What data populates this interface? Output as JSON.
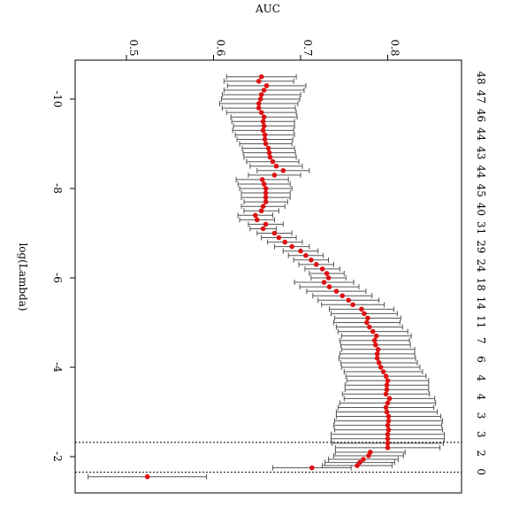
{
  "chart_data": {
    "type": "scatter",
    "title": "",
    "xlabel": "log(Lambda)",
    "ylabel": "AUC",
    "orientation": "rotated 90 degrees clockwise: log(Lambda) runs top to bottom, AUC runs left to right",
    "xlim": [
      -10.8,
      -1.4
    ],
    "ylim": [
      0.44,
      0.87
    ],
    "x_ticks": [
      -10,
      -8,
      -6,
      -4,
      -2
    ],
    "x_tick_labels": [
      "-10",
      "-8",
      "-6",
      "-4",
      "-2"
    ],
    "y_ticks": [
      0.5,
      0.6,
      0.7,
      0.8
    ],
    "y_tick_labels": [
      "0.5",
      "0.6",
      "0.7",
      "0.8"
    ],
    "top_axis_label_values": [
      "48",
      "47",
      "46",
      "44",
      "43",
      "44",
      "45",
      "40",
      "31",
      "29",
      "24",
      "18",
      "14",
      "11",
      "7",
      "6",
      "4",
      "4",
      "3",
      "3",
      "2",
      "0"
    ],
    "top_axis_label_positions": [
      -10.5,
      -10.0,
      -9.5,
      -9.0,
      -8.5,
      -8.0,
      -7.5,
      -7.0,
      -6.5,
      -6.0,
      -5.5,
      -5.0,
      -4.5,
      -4.0,
      -3.5,
      -3.0,
      -2.5,
      -2.0,
      -1.7,
      -1.5,
      -1.4,
      -1.5
    ],
    "grid": false,
    "reference_lines_x": [
      -2.32,
      -1.65
    ],
    "point_color": "#dd1111",
    "errorbar_color": "#555555",
    "series": [
      {
        "log_lambda": [
          -1.55,
          -1.75,
          -1.8,
          -1.87,
          -1.94,
          -2.02,
          -2.1,
          -2.2,
          -2.3,
          -2.4,
          -2.5,
          -2.6,
          -2.7,
          -2.8,
          -2.9,
          -3.0,
          -3.1,
          -3.2,
          -3.3,
          -3.4,
          -3.5,
          -3.6,
          -3.7,
          -3.8,
          -3.9,
          -4.0,
          -4.1,
          -4.2,
          -4.3,
          -4.4,
          -4.5,
          -4.6,
          -4.7,
          -4.8,
          -4.9,
          -5.0,
          -5.1,
          -5.2,
          -5.3,
          -5.4,
          -5.5,
          -5.6,
          -5.7,
          -5.8,
          -5.9,
          -6.0,
          -6.1,
          -6.2,
          -6.3,
          -6.4,
          -6.5,
          -6.6,
          -6.7,
          -6.8,
          -6.9,
          -7.0,
          -7.1,
          -7.2,
          -7.3,
          -7.4,
          -7.5,
          -7.6,
          -7.7,
          -7.8,
          -7.9,
          -8.0,
          -8.1,
          -8.2,
          -8.3,
          -8.4,
          -8.5,
          -8.6,
          -8.7,
          -8.8,
          -8.9,
          -9.0,
          -9.1,
          -9.2,
          -9.3,
          -9.4,
          -9.5,
          -9.6,
          -9.7,
          -9.8,
          -9.9,
          -10.0,
          -10.1,
          -10.2,
          -10.3,
          -10.4,
          -10.5
        ],
        "auc": [
          0.524,
          0.713,
          0.765,
          0.768,
          0.772,
          0.778,
          0.78,
          0.8,
          0.8,
          0.8,
          0.8,
          0.801,
          0.8,
          0.801,
          0.801,
          0.799,
          0.798,
          0.8,
          0.802,
          0.798,
          0.799,
          0.799,
          0.8,
          0.798,
          0.795,
          0.792,
          0.79,
          0.788,
          0.788,
          0.789,
          0.786,
          0.785,
          0.787,
          0.783,
          0.779,
          0.776,
          0.777,
          0.773,
          0.77,
          0.76,
          0.755,
          0.748,
          0.741,
          0.733,
          0.727,
          0.732,
          0.73,
          0.725,
          0.718,
          0.712,
          0.706,
          0.7,
          0.69,
          0.682,
          0.675,
          0.67,
          0.657,
          0.66,
          0.65,
          0.648,
          0.655,
          0.657,
          0.66,
          0.66,
          0.66,
          0.66,
          0.658,
          0.656,
          0.67,
          0.68,
          0.672,
          0.668,
          0.665,
          0.664,
          0.663,
          0.66,
          0.659,
          0.659,
          0.657,
          0.658,
          0.657,
          0.658,
          0.655,
          0.652,
          0.652,
          0.654,
          0.655,
          0.658,
          0.661,
          0.652,
          0.655
        ],
        "half_width": [
          0.068,
          0.045,
          0.04,
          0.04,
          0.04,
          0.04,
          0.04,
          0.06,
          0.064,
          0.065,
          0.065,
          0.062,
          0.062,
          0.062,
          0.06,
          0.058,
          0.055,
          0.055,
          0.052,
          0.05,
          0.048,
          0.048,
          0.047,
          0.046,
          0.045,
          0.045,
          0.044,
          0.044,
          0.043,
          0.042,
          0.04,
          0.04,
          0.04,
          0.04,
          0.038,
          0.038,
          0.038,
          0.038,
          0.037,
          0.036,
          0.035,
          0.034,
          0.034,
          0.034,
          0.034,
          0.02,
          0.02,
          0.02,
          0.02,
          0.02,
          0.02,
          0.02,
          0.02,
          0.02,
          0.02,
          0.02,
          0.015,
          0.02,
          0.02,
          0.02,
          0.02,
          0.025,
          0.025,
          0.028,
          0.028,
          0.03,
          0.03,
          0.03,
          0.03,
          0.03,
          0.03,
          0.03,
          0.03,
          0.03,
          0.03,
          0.03,
          0.032,
          0.034,
          0.035,
          0.035,
          0.036,
          0.038,
          0.04,
          0.042,
          0.045,
          0.045,
          0.045,
          0.046,
          0.045,
          0.04,
          0.04
        ]
      }
    ]
  }
}
